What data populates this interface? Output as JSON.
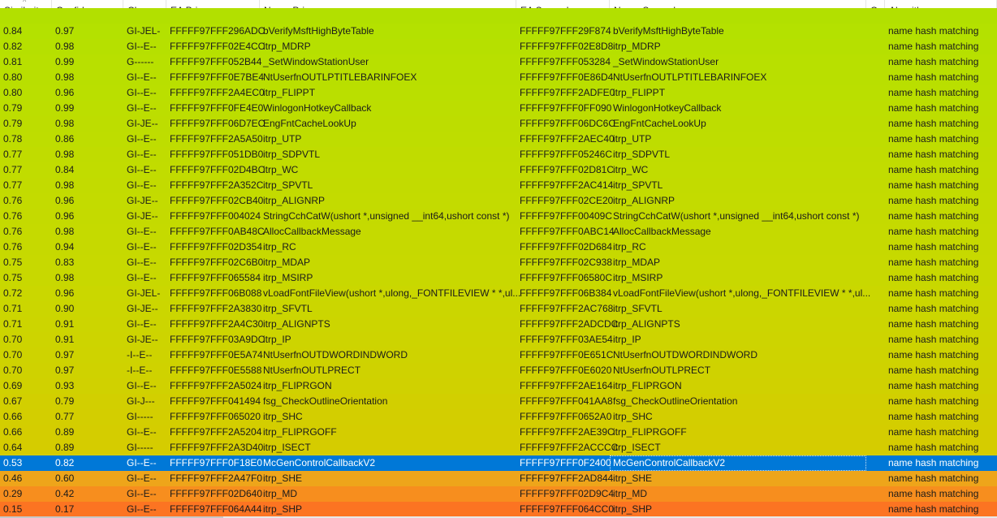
{
  "table": {
    "sorted_column": "Similarity",
    "sort_direction": "ascending-indicator",
    "columns": [
      "Similarity",
      "Confidence",
      "Change",
      "EA Primary",
      "Name Primary",
      "EA Secondary",
      "Name Secondary",
      "Co",
      "Algorithm"
    ],
    "partial_top_row_color": "#b2e000",
    "selected_color": "#0078d7",
    "rows": [
      {
        "sim": "0.84",
        "conf": "0.97",
        "change": "GI-JEL-",
        "ea1": "FFFFF97FFF296ADC",
        "name1": "bVerifyMsftHighByteTable",
        "ea2": "FFFFF97FFF29F874",
        "name2": "bVerifyMsftHighByteTable",
        "co": "",
        "algo": "name hash matching",
        "color": "#b4e100"
      },
      {
        "sim": "0.82",
        "conf": "0.98",
        "change": "GI--E--",
        "ea1": "FFFFF97FFF02E4CC",
        "name1": "itrp_MDRP",
        "ea2": "FFFFF97FFF02E8D8",
        "name2": "itrp_MDRP",
        "co": "",
        "algo": "name hash matching",
        "color": "#b6e000"
      },
      {
        "sim": "0.81",
        "conf": "0.99",
        "change": "G------",
        "ea1": "FFFFF97FFF052B44",
        "name1": "_SetWindowStationUser",
        "ea2": "FFFFF97FFF053284",
        "name2": "_SetWindowStationUser",
        "co": "",
        "algo": "name hash matching",
        "color": "#b8e000"
      },
      {
        "sim": "0.80",
        "conf": "0.98",
        "change": "GI--E--",
        "ea1": "FFFFF97FFF0E7BE4",
        "name1": "NtUserfnOUTLPTITLEBARINFOEX",
        "ea2": "FFFFF97FFF0E86D4",
        "name2": "NtUserfnOUTLPTITLEBARINFOEX",
        "co": "",
        "algo": "name hash matching",
        "color": "#b9df00"
      },
      {
        "sim": "0.80",
        "conf": "0.96",
        "change": "GI--E--",
        "ea1": "FFFFF97FFF2A4EC0",
        "name1": "itrp_FLIPPT",
        "ea2": "FFFFF97FFF2ADFE0",
        "name2": "itrp_FLIPPT",
        "co": "",
        "algo": "name hash matching",
        "color": "#badf00"
      },
      {
        "sim": "0.79",
        "conf": "0.99",
        "change": "GI--E--",
        "ea1": "FFFFF97FFF0FE4E0",
        "name1": "WinlogonHotkeyCallback",
        "ea2": "FFFFF97FFF0FF090",
        "name2": "WinlogonHotkeyCallback",
        "co": "",
        "algo": "name hash matching",
        "color": "#bcde00"
      },
      {
        "sim": "0.79",
        "conf": "0.98",
        "change": "GI-JE--",
        "ea1": "FFFFF97FFF06D7EC",
        "name1": "EngFntCacheLookUp",
        "ea2": "FFFFF97FFF06DC6C",
        "name2": "EngFntCacheLookUp",
        "co": "",
        "algo": "name hash matching",
        "color": "#bddd00"
      },
      {
        "sim": "0.78",
        "conf": "0.86",
        "change": "GI--E--",
        "ea1": "FFFFF97FFF2A5A50",
        "name1": "itrp_UTP",
        "ea2": "FFFFF97FFF2AEC40",
        "name2": "itrp_UTP",
        "co": "",
        "algo": "name hash matching",
        "color": "#bedd00"
      },
      {
        "sim": "0.77",
        "conf": "0.98",
        "change": "GI--E--",
        "ea1": "FFFFF97FFF051DB0",
        "name1": "itrp_SDPVTL",
        "ea2": "FFFFF97FFF05246C",
        "name2": "itrp_SDPVTL",
        "co": "",
        "algo": "name hash matching",
        "color": "#c0dc00"
      },
      {
        "sim": "0.77",
        "conf": "0.84",
        "change": "GI--E--",
        "ea1": "FFFFF97FFF02D4BC",
        "name1": "itrp_WC",
        "ea2": "FFFFF97FFF02D81C",
        "name2": "itrp_WC",
        "co": "",
        "algo": "name hash matching",
        "color": "#c1dc00"
      },
      {
        "sim": "0.77",
        "conf": "0.98",
        "change": "GI--E--",
        "ea1": "FFFFF97FFF2A352C",
        "name1": "itrp_SPVTL",
        "ea2": "FFFFF97FFF2AC414",
        "name2": "itrp_SPVTL",
        "co": "",
        "algo": "name hash matching",
        "color": "#c2db00"
      },
      {
        "sim": "0.76",
        "conf": "0.96",
        "change": "GI-JE--",
        "ea1": "FFFFF97FFF02CB40",
        "name1": "itrp_ALIGNRP",
        "ea2": "FFFFF97FFF02CE20",
        "name2": "itrp_ALIGNRP",
        "co": "",
        "algo": "name hash matching",
        "color": "#c3db00"
      },
      {
        "sim": "0.76",
        "conf": "0.96",
        "change": "GI-JE--",
        "ea1": "FFFFF97FFF004024",
        "name1": "StringCchCatW(ushort *,unsigned __int64,ushort const *)",
        "ea2": "FFFFF97FFF00409C",
        "name2": "StringCchCatW(ushort *,unsigned __int64,ushort const *)",
        "co": "",
        "algo": "name hash matching",
        "color": "#c4da00"
      },
      {
        "sim": "0.76",
        "conf": "0.98",
        "change": "GI--E--",
        "ea1": "FFFFF97FFF0AB48C",
        "name1": "AllocCallbackMessage",
        "ea2": "FFFFF97FFF0ABC14",
        "name2": "AllocCallbackMessage",
        "co": "",
        "algo": "name hash matching",
        "color": "#c5da00"
      },
      {
        "sim": "0.76",
        "conf": "0.94",
        "change": "GI--E--",
        "ea1": "FFFFF97FFF02D354",
        "name1": "itrp_RC",
        "ea2": "FFFFF97FFF02D684",
        "name2": "itrp_RC",
        "co": "",
        "algo": "name hash matching",
        "color": "#c6d900"
      },
      {
        "sim": "0.75",
        "conf": "0.83",
        "change": "GI--E--",
        "ea1": "FFFFF97FFF02C6B0",
        "name1": "itrp_MDAP",
        "ea2": "FFFFF97FFF02C938",
        "name2": "itrp_MDAP",
        "co": "",
        "algo": "name hash matching",
        "color": "#c7d900"
      },
      {
        "sim": "0.75",
        "conf": "0.98",
        "change": "GI--E--",
        "ea1": "FFFFF97FFF065584",
        "name1": "itrp_MSIRP",
        "ea2": "FFFFF97FFF06580C",
        "name2": "itrp_MSIRP",
        "co": "",
        "algo": "name hash matching",
        "color": "#c8d800"
      },
      {
        "sim": "0.72",
        "conf": "0.96",
        "change": "GI-JEL-",
        "ea1": "FFFFF97FFF06B088",
        "name1": "vLoadFontFileView(ushort *,ulong,_FONTFILEVIEW * *,ul...",
        "ea2": "FFFFF97FFF06B384",
        "name2": "vLoadFontFileView(ushort *,ulong,_FONTFILEVIEW * *,ul...",
        "co": "",
        "algo": "name hash matching",
        "color": "#cad700"
      },
      {
        "sim": "0.71",
        "conf": "0.90",
        "change": "GI-JE--",
        "ea1": "FFFFF97FFF2A3830",
        "name1": "itrp_SFVTL",
        "ea2": "FFFFF97FFF2AC768",
        "name2": "itrp_SFVTL",
        "co": "",
        "algo": "name hash matching",
        "color": "#cbd600"
      },
      {
        "sim": "0.71",
        "conf": "0.91",
        "change": "GI--E--",
        "ea1": "FFFFF97FFF2A4C30",
        "name1": "itrp_ALIGNPTS",
        "ea2": "FFFFF97FFF2ADCDC",
        "name2": "itrp_ALIGNPTS",
        "co": "",
        "algo": "name hash matching",
        "color": "#ccd500"
      },
      {
        "sim": "0.70",
        "conf": "0.91",
        "change": "GI-JE--",
        "ea1": "FFFFF97FFF03A9DC",
        "name1": "itrp_IP",
        "ea2": "FFFFF97FFF03AE54",
        "name2": "itrp_IP",
        "co": "",
        "algo": "name hash matching",
        "color": "#cdd400"
      },
      {
        "sim": "0.70",
        "conf": "0.97",
        "change": "-I--E--",
        "ea1": "FFFFF97FFF0E5A74",
        "name1": "NtUserfnOUTDWORDINDWORD",
        "ea2": "FFFFF97FFF0E651C",
        "name2": "NtUserfnOUTDWORDINDWORD",
        "co": "",
        "algo": "name hash matching",
        "color": "#ced300"
      },
      {
        "sim": "0.70",
        "conf": "0.97",
        "change": "-I--E--",
        "ea1": "FFFFF97FFF0E5588",
        "name1": "NtUserfnOUTLPRECT",
        "ea2": "FFFFF97FFF0E6020",
        "name2": "NtUserfnOUTLPRECT",
        "co": "",
        "algo": "name hash matching",
        "color": "#cfd200"
      },
      {
        "sim": "0.69",
        "conf": "0.93",
        "change": "GI--E--",
        "ea1": "FFFFF97FFF2A5024",
        "name1": "itrp_FLIPRGON",
        "ea2": "FFFFF97FFF2AE164",
        "name2": "itrp_FLIPRGON",
        "co": "",
        "algo": "name hash matching",
        "color": "#d0d100"
      },
      {
        "sim": "0.67",
        "conf": "0.79",
        "change": "GI-J---",
        "ea1": "FFFFF97FFF041494",
        "name1": "fsg_CheckOutlineOrientation",
        "ea2": "FFFFF97FFF041AA8",
        "name2": "fsg_CheckOutlineOrientation",
        "co": "",
        "algo": "name hash matching",
        "color": "#d2cf00"
      },
      {
        "sim": "0.66",
        "conf": "0.77",
        "change": "GI-----",
        "ea1": "FFFFF97FFF065020",
        "name1": "itrp_SHC",
        "ea2": "FFFFF97FFF0652A0",
        "name2": "itrp_SHC",
        "co": "",
        "algo": "name hash matching",
        "color": "#d3ce00"
      },
      {
        "sim": "0.66",
        "conf": "0.89",
        "change": "GI--E--",
        "ea1": "FFFFF97FFF2A5204",
        "name1": "itrp_FLIPRGOFF",
        "ea2": "FFFFF97FFF2AE39C",
        "name2": "itrp_FLIPRGOFF",
        "co": "",
        "algo": "name hash matching",
        "color": "#d4cd00"
      },
      {
        "sim": "0.64",
        "conf": "0.89",
        "change": "GI-----",
        "ea1": "FFFFF97FFF2A3D40",
        "name1": "itrp_ISECT",
        "ea2": "FFFFF97FFF2ACCCC",
        "name2": "itrp_ISECT",
        "co": "",
        "algo": "name hash matching",
        "color": "#d5cc00"
      },
      {
        "sim": "0.53",
        "conf": "0.82",
        "change": "GI--E--",
        "ea1": "FFFFF97FFF0F18E0",
        "name1": "McGenControlCallbackV2",
        "ea2": "FFFFF97FFF0F2400",
        "name2": "McGenControlCallbackV2",
        "co": "",
        "algo": "name hash matching",
        "color": "#e3b80c",
        "selected": true
      },
      {
        "sim": "0.46",
        "conf": "0.60",
        "change": "GI--E--",
        "ea1": "FFFFF97FFF2A47F0",
        "name1": "itrp_SHE",
        "ea2": "FFFFF97FFF2AD844",
        "name2": "itrp_SHE",
        "co": "",
        "algo": "name hash matching",
        "color": "#eea51a"
      },
      {
        "sim": "0.29",
        "conf": "0.42",
        "change": "GI--E--",
        "ea1": "FFFFF97FFF02D640",
        "name1": "itrp_MD",
        "ea2": "FFFFF97FFF02D9C4",
        "name2": "itrp_MD",
        "co": "",
        "algo": "name hash matching",
        "color": "#f78e1e"
      },
      {
        "sim": "0.15",
        "conf": "0.17",
        "change": "GI--E--",
        "ea1": "FFFFF97FFF064A44",
        "name1": "itrp_SHP",
        "ea2": "FFFFF97FFF064CC0",
        "name2": "itrp_SHP",
        "co": "",
        "algo": "name hash matching",
        "color": "#fc7422"
      }
    ]
  }
}
